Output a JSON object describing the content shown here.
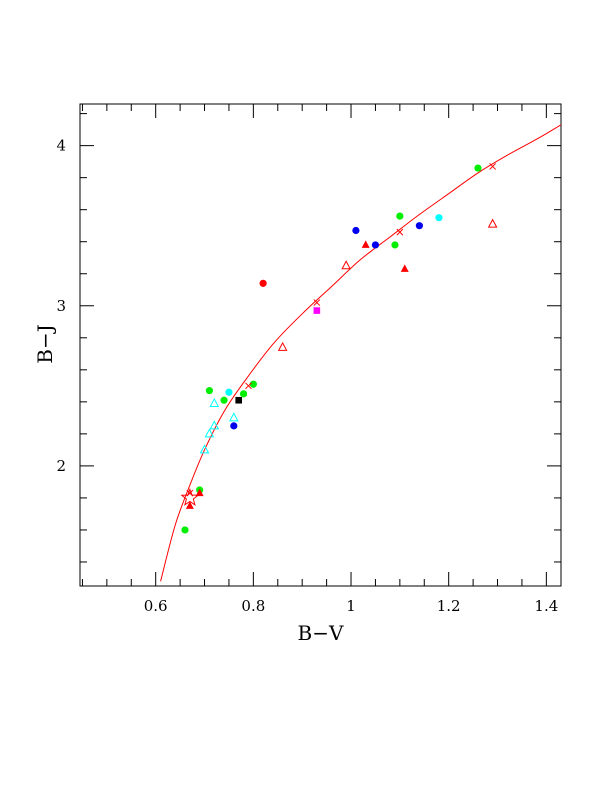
{
  "chart_data": {
    "type": "scatter",
    "title": "",
    "xlabel": "B−V",
    "ylabel": "B−J",
    "xlim": [
      0.445,
      1.43
    ],
    "ylim": [
      1.25,
      4.26
    ],
    "grid": false,
    "legend": "none",
    "x_major_ticks": [
      0.6,
      0.8,
      1.0,
      1.2,
      1.4
    ],
    "x_tick_labels": [
      "0.6",
      "0.8",
      "1",
      "1.2",
      "1.4"
    ],
    "x_minor_step": 0.05,
    "y_major_ticks": [
      2,
      3,
      4
    ],
    "y_tick_labels": [
      "2",
      "3",
      "4"
    ],
    "y_minor_step": 0.2,
    "fit_curve": {
      "color": "#ff0000",
      "points": [
        [
          0.61,
          1.28
        ],
        [
          0.64,
          1.63
        ],
        [
          0.67,
          1.88
        ],
        [
          0.7,
          2.1
        ],
        [
          0.74,
          2.34
        ],
        [
          0.78,
          2.52
        ],
        [
          0.84,
          2.76
        ],
        [
          0.9,
          2.95
        ],
        [
          0.96,
          3.12
        ],
        [
          1.02,
          3.29
        ],
        [
          1.08,
          3.43
        ],
        [
          1.14,
          3.57
        ],
        [
          1.2,
          3.7
        ],
        [
          1.26,
          3.83
        ],
        [
          1.32,
          3.94
        ],
        [
          1.38,
          4.04
        ],
        [
          1.43,
          4.13
        ]
      ]
    },
    "series": [
      {
        "marker": "dot",
        "color": "#00ee00",
        "points": [
          [
            0.71,
            2.47
          ],
          [
            0.74,
            2.41
          ],
          [
            0.78,
            2.45
          ],
          [
            0.8,
            2.51
          ],
          [
            0.69,
            1.85
          ],
          [
            0.66,
            1.6
          ],
          [
            1.09,
            3.38
          ],
          [
            1.1,
            3.56
          ],
          [
            1.26,
            3.86
          ]
        ]
      },
      {
        "marker": "dot",
        "color": "#0000ee",
        "points": [
          [
            0.76,
            2.25
          ],
          [
            1.01,
            3.47
          ],
          [
            1.05,
            3.38
          ],
          [
            1.14,
            3.5
          ]
        ]
      },
      {
        "marker": "dot",
        "color": "#00ffff",
        "points": [
          [
            0.75,
            2.46
          ],
          [
            1.18,
            3.55
          ]
        ]
      },
      {
        "marker": "dot",
        "color": "#ff0000",
        "points": [
          [
            0.82,
            3.14
          ]
        ]
      },
      {
        "marker": "square",
        "color": "#000000",
        "points": [
          [
            0.77,
            2.41
          ]
        ]
      },
      {
        "marker": "square",
        "color": "#ff00ff",
        "points": [
          [
            0.93,
            2.97
          ]
        ]
      },
      {
        "marker": "triangle-open",
        "color": "#00ffff",
        "points": [
          [
            0.7,
            2.1
          ],
          [
            0.71,
            2.2
          ],
          [
            0.72,
            2.25
          ],
          [
            0.72,
            2.39
          ],
          [
            0.76,
            2.3
          ]
        ]
      },
      {
        "marker": "triangle-open",
        "color": "#ff0000",
        "points": [
          [
            0.86,
            2.74
          ],
          [
            0.99,
            3.25
          ],
          [
            1.29,
            3.51
          ]
        ]
      },
      {
        "marker": "triangle-filled",
        "color": "#ff0000",
        "points": [
          [
            0.67,
            1.75
          ],
          [
            0.69,
            1.83
          ],
          [
            1.03,
            3.38
          ],
          [
            1.11,
            3.23
          ]
        ]
      },
      {
        "marker": "cross",
        "color": "#ff0000",
        "points": [
          [
            0.67,
            1.83
          ],
          [
            0.93,
            3.02
          ],
          [
            1.1,
            3.46
          ],
          [
            1.29,
            3.87
          ],
          [
            0.79,
            2.5
          ]
        ]
      },
      {
        "marker": "star-open",
        "color": "#ff0000",
        "points": [
          [
            0.67,
            1.8
          ]
        ]
      }
    ]
  }
}
